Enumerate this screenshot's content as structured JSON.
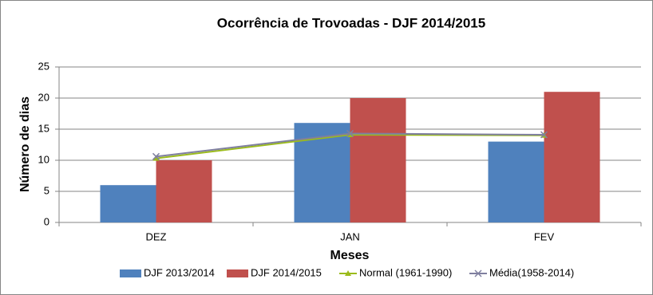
{
  "chart_data": {
    "type": "bar",
    "title": "Ocorrência de Trovoadas  - DJF 2014/2015",
    "x_label": "Meses",
    "y_label": "Número de dias",
    "categories": [
      "DEZ",
      "JAN",
      "FEV"
    ],
    "series": [
      {
        "name": "DJF 2013/2014",
        "color": "#4f81bd",
        "values": [
          6,
          16,
          13
        ]
      },
      {
        "name": "DJF 2014/2015",
        "color": "#c0504d",
        "values": [
          10,
          20,
          21
        ]
      },
      {
        "name": "Normal (1961-1990)",
        "type": "line",
        "marker": "triangle",
        "color": "#9bbb1c",
        "values": [
          10.3,
          14.1,
          14.0
        ]
      },
      {
        "name": "Média(1958-2014)",
        "type": "line",
        "marker": "x",
        "color": "#7f7f9f",
        "values": [
          10.6,
          14.3,
          14.1
        ]
      }
    ],
    "ylim": [
      0,
      25
    ],
    "yticks": [
      0,
      5,
      10,
      15,
      20,
      25
    ],
    "grid": true,
    "legend": "bottom"
  }
}
